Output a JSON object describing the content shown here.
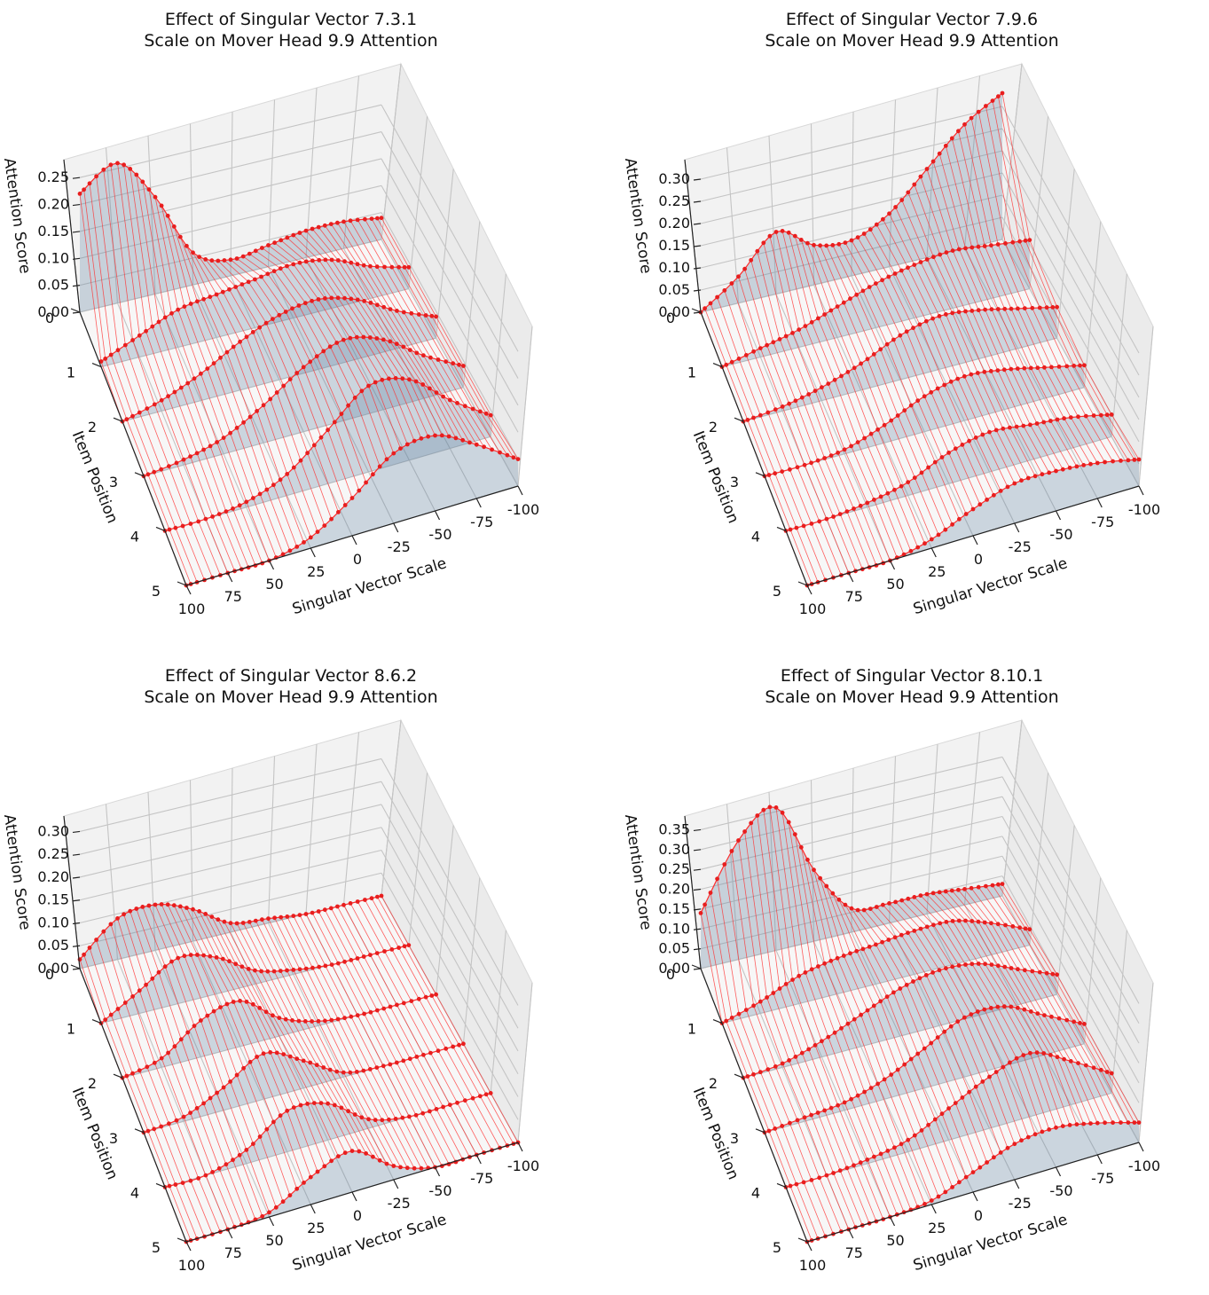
{
  "chart_data": [
    {
      "type": "surface3d",
      "title_line1": "Effect of Singular Vector 7.3.1",
      "title_line2": "Scale on Mover Head 9.9 Attention",
      "xlabel": "Singular Vector Scale",
      "ylabel": "Item Position",
      "zlabel": "Attention Score",
      "x_ticks": [
        "100",
        "75",
        "50",
        "25",
        "0",
        "-25",
        "-50",
        "-75",
        "-100"
      ],
      "y_ticks": [
        "0",
        "1",
        "2",
        "3",
        "4",
        "5"
      ],
      "z_ticks": [
        "0.00",
        "0.05",
        "0.10",
        "0.15",
        "0.20",
        "0.25"
      ],
      "zlim": [
        0,
        0.28
      ],
      "series": [
        {
          "name": "item 0",
          "points": [
            [
              100,
              0.22
            ],
            [
              75,
              0.26
            ],
            [
              50,
              0.18
            ],
            [
              25,
              0.06
            ],
            [
              0,
              0.03
            ],
            [
              -25,
              0.04
            ],
            [
              -50,
              0.05
            ],
            [
              -75,
              0.05
            ],
            [
              -100,
              0.04
            ]
          ]
        },
        {
          "name": "item 1",
          "points": [
            [
              100,
              0.01
            ],
            [
              75,
              0.04
            ],
            [
              50,
              0.07
            ],
            [
              25,
              0.08
            ],
            [
              0,
              0.09
            ],
            [
              -25,
              0.1
            ],
            [
              -50,
              0.09
            ],
            [
              -75,
              0.06
            ],
            [
              -100,
              0.04
            ]
          ]
        },
        {
          "name": "item 2",
          "points": [
            [
              100,
              0.0
            ],
            [
              75,
              0.02
            ],
            [
              50,
              0.05
            ],
            [
              25,
              0.09
            ],
            [
              0,
              0.12
            ],
            [
              -25,
              0.13
            ],
            [
              -50,
              0.11
            ],
            [
              -75,
              0.07
            ],
            [
              -100,
              0.04
            ]
          ]
        },
        {
          "name": "item 3",
          "points": [
            [
              100,
              0.0
            ],
            [
              75,
              0.01
            ],
            [
              50,
              0.03
            ],
            [
              25,
              0.07
            ],
            [
              0,
              0.12
            ],
            [
              -25,
              0.15
            ],
            [
              -50,
              0.13
            ],
            [
              -75,
              0.08
            ],
            [
              -100,
              0.04
            ]
          ]
        },
        {
          "name": "item 4",
          "points": [
            [
              100,
              0.0
            ],
            [
              75,
              0.0
            ],
            [
              50,
              0.01
            ],
            [
              25,
              0.04
            ],
            [
              0,
              0.1
            ],
            [
              -25,
              0.16
            ],
            [
              -50,
              0.15
            ],
            [
              -75,
              0.09
            ],
            [
              -100,
              0.04
            ]
          ]
        },
        {
          "name": "item 5",
          "points": [
            [
              100,
              0.0
            ],
            [
              75,
              0.0
            ],
            [
              50,
              0.0
            ],
            [
              25,
              0.02
            ],
            [
              0,
              0.07
            ],
            [
              -25,
              0.13
            ],
            [
              -50,
              0.14
            ],
            [
              -75,
              0.1
            ],
            [
              -100,
              0.05
            ]
          ]
        }
      ]
    },
    {
      "type": "surface3d",
      "title_line1": "Effect of Singular Vector 7.9.6",
      "title_line2": "Scale on Mover Head 9.9 Attention",
      "xlabel": "Singular Vector Scale",
      "ylabel": "Item Position",
      "zlabel": "Attention Score",
      "x_ticks": [
        "100",
        "75",
        "50",
        "25",
        "0",
        "-25",
        "-50",
        "-75",
        "-100"
      ],
      "y_ticks": [
        "0",
        "1",
        "2",
        "3",
        "4",
        "5"
      ],
      "z_ticks": [
        "0.00",
        "0.05",
        "0.10",
        "0.15",
        "0.20",
        "0.25",
        "0.30"
      ],
      "zlim": [
        0,
        0.34
      ],
      "series": [
        {
          "name": "item 0",
          "points": [
            [
              100,
              0.0
            ],
            [
              75,
              0.06
            ],
            [
              50,
              0.14
            ],
            [
              25,
              0.09
            ],
            [
              0,
              0.08
            ],
            [
              -25,
              0.12
            ],
            [
              -50,
              0.2
            ],
            [
              -75,
              0.28
            ],
            [
              -100,
              0.33
            ]
          ]
        },
        {
          "name": "item 1",
          "points": [
            [
              100,
              0.0
            ],
            [
              75,
              0.02
            ],
            [
              50,
              0.04
            ],
            [
              25,
              0.07
            ],
            [
              0,
              0.1
            ],
            [
              -25,
              0.12
            ],
            [
              -50,
              0.13
            ],
            [
              -75,
              0.12
            ],
            [
              -100,
              0.11
            ]
          ]
        },
        {
          "name": "item 2",
          "points": [
            [
              100,
              0.0
            ],
            [
              75,
              0.01
            ],
            [
              50,
              0.03
            ],
            [
              25,
              0.06
            ],
            [
              0,
              0.1
            ],
            [
              -25,
              0.12
            ],
            [
              -50,
              0.11
            ],
            [
              -75,
              0.09
            ],
            [
              -100,
              0.07
            ]
          ]
        },
        {
          "name": "item 3",
          "points": [
            [
              100,
              0.0
            ],
            [
              75,
              0.0
            ],
            [
              50,
              0.01
            ],
            [
              25,
              0.04
            ],
            [
              0,
              0.08
            ],
            [
              -25,
              0.1
            ],
            [
              -50,
              0.09
            ],
            [
              -75,
              0.07
            ],
            [
              -100,
              0.05
            ]
          ]
        },
        {
          "name": "item 4",
          "points": [
            [
              100,
              0.0
            ],
            [
              75,
              0.0
            ],
            [
              50,
              0.01
            ],
            [
              25,
              0.03
            ],
            [
              0,
              0.07
            ],
            [
              -25,
              0.09
            ],
            [
              -50,
              0.08
            ],
            [
              -75,
              0.07
            ],
            [
              -100,
              0.05
            ]
          ]
        },
        {
          "name": "item 5",
          "points": [
            [
              100,
              0.0
            ],
            [
              75,
              0.0
            ],
            [
              50,
              0.0
            ],
            [
              25,
              0.02
            ],
            [
              0,
              0.06
            ],
            [
              -25,
              0.09
            ],
            [
              -50,
              0.09
            ],
            [
              -75,
              0.08
            ],
            [
              -100,
              0.06
            ]
          ]
        }
      ]
    },
    {
      "type": "surface3d",
      "title_line1": "Effect of Singular Vector 8.6.2",
      "title_line2": "Scale on Mover Head 9.9 Attention",
      "xlabel": "Singular Vector Scale",
      "ylabel": "Item Position",
      "zlabel": "Attention Score",
      "x_ticks": [
        "100",
        "75",
        "50",
        "25",
        "0",
        "-25",
        "-50",
        "-75",
        "-100"
      ],
      "y_ticks": [
        "0",
        "1",
        "2",
        "3",
        "4",
        "5"
      ],
      "z_ticks": [
        "0.00",
        "0.05",
        "0.10",
        "0.15",
        "0.20",
        "0.25",
        "0.30"
      ],
      "zlim": [
        0,
        0.33
      ],
      "series": [
        {
          "name": "item 0",
          "points": [
            [
              100,
              0.02
            ],
            [
              75,
              0.09
            ],
            [
              50,
              0.1
            ],
            [
              25,
              0.07
            ],
            [
              0,
              0.02
            ],
            [
              -25,
              0.01
            ],
            [
              -50,
              0.0
            ],
            [
              -75,
              0.0
            ],
            [
              -100,
              0.0
            ]
          ]
        },
        {
          "name": "item 1",
          "points": [
            [
              100,
              0.0
            ],
            [
              75,
              0.05
            ],
            [
              50,
              0.1
            ],
            [
              25,
              0.08
            ],
            [
              0,
              0.03
            ],
            [
              -25,
              0.01
            ],
            [
              -50,
              0.0
            ],
            [
              -75,
              0.0
            ],
            [
              -100,
              0.0
            ]
          ]
        },
        {
          "name": "item 2",
          "points": [
            [
              100,
              0.0
            ],
            [
              75,
              0.02
            ],
            [
              50,
              0.08
            ],
            [
              25,
              0.1
            ],
            [
              0,
              0.04
            ],
            [
              -25,
              0.01
            ],
            [
              -50,
              0.0
            ],
            [
              -75,
              0.0
            ],
            [
              -100,
              0.0
            ]
          ]
        },
        {
          "name": "item 3",
          "points": [
            [
              100,
              0.0
            ],
            [
              75,
              0.01
            ],
            [
              50,
              0.05
            ],
            [
              25,
              0.1
            ],
            [
              0,
              0.06
            ],
            [
              -25,
              0.01
            ],
            [
              -50,
              0.0
            ],
            [
              -75,
              0.0
            ],
            [
              -100,
              0.0
            ]
          ]
        },
        {
          "name": "item 4",
          "points": [
            [
              100,
              0.0
            ],
            [
              75,
              0.0
            ],
            [
              50,
              0.03
            ],
            [
              25,
              0.09
            ],
            [
              0,
              0.08
            ],
            [
              -25,
              0.02
            ],
            [
              -50,
              0.0
            ],
            [
              -75,
              0.0
            ],
            [
              -100,
              0.0
            ]
          ]
        },
        {
          "name": "item 5",
          "points": [
            [
              100,
              0.0
            ],
            [
              75,
              0.0
            ],
            [
              50,
              0.01
            ],
            [
              25,
              0.06
            ],
            [
              0,
              0.09
            ],
            [
              -25,
              0.03
            ],
            [
              -50,
              0.0
            ],
            [
              -75,
              0.0
            ],
            [
              -100,
              0.0
            ]
          ]
        }
      ]
    },
    {
      "type": "surface3d",
      "title_line1": "Effect of Singular Vector 8.10.1",
      "title_line2": "Scale on Mover Head 9.9 Attention",
      "xlabel": "Singular Vector Scale",
      "ylabel": "Item Position",
      "zlabel": "Attention Score",
      "x_ticks": [
        "100",
        "75",
        "50",
        "25",
        "0",
        "-25",
        "-50",
        "-75",
        "-100"
      ],
      "y_ticks": [
        "0",
        "1",
        "2",
        "3",
        "4",
        "5"
      ],
      "z_ticks": [
        "0.00",
        "0.05",
        "0.10",
        "0.15",
        "0.20",
        "0.25",
        "0.30",
        "0.35"
      ],
      "zlim": [
        0,
        0.38
      ],
      "series": [
        {
          "name": "item 0",
          "points": [
            [
              100,
              0.14
            ],
            [
              75,
              0.3
            ],
            [
              50,
              0.36
            ],
            [
              25,
              0.18
            ],
            [
              0,
              0.06
            ],
            [
              -25,
              0.05
            ],
            [
              -50,
              0.05
            ],
            [
              -75,
              0.04
            ],
            [
              -100,
              0.03
            ]
          ]
        },
        {
          "name": "item 1",
          "points": [
            [
              100,
              0.0
            ],
            [
              75,
              0.03
            ],
            [
              50,
              0.07
            ],
            [
              25,
              0.09
            ],
            [
              0,
              0.1
            ],
            [
              -25,
              0.11
            ],
            [
              -50,
              0.11
            ],
            [
              -75,
              0.08
            ],
            [
              -100,
              0.04
            ]
          ]
        },
        {
          "name": "item 2",
          "points": [
            [
              100,
              0.0
            ],
            [
              75,
              0.01
            ],
            [
              50,
              0.04
            ],
            [
              25,
              0.08
            ],
            [
              0,
              0.12
            ],
            [
              -25,
              0.14
            ],
            [
              -50,
              0.13
            ],
            [
              -75,
              0.09
            ],
            [
              -100,
              0.05
            ]
          ]
        },
        {
          "name": "item 3",
          "points": [
            [
              100,
              0.0
            ],
            [
              75,
              0.01
            ],
            [
              50,
              0.02
            ],
            [
              25,
              0.05
            ],
            [
              0,
              0.1
            ],
            [
              -25,
              0.15
            ],
            [
              -50,
              0.15
            ],
            [
              -75,
              0.1
            ],
            [
              -100,
              0.05
            ]
          ]
        },
        {
          "name": "item 4",
          "points": [
            [
              100,
              0.0
            ],
            [
              75,
              0.0
            ],
            [
              50,
              0.01
            ],
            [
              25,
              0.03
            ],
            [
              0,
              0.08
            ],
            [
              -25,
              0.13
            ],
            [
              -50,
              0.16
            ],
            [
              -75,
              0.11
            ],
            [
              -100,
              0.05
            ]
          ]
        },
        {
          "name": "item 5",
          "points": [
            [
              100,
              0.0
            ],
            [
              75,
              0.0
            ],
            [
              50,
              0.0
            ],
            [
              25,
              0.01
            ],
            [
              0,
              0.05
            ],
            [
              -25,
              0.09
            ],
            [
              -50,
              0.1
            ],
            [
              -75,
              0.08
            ],
            [
              -100,
              0.05
            ]
          ]
        }
      ]
    }
  ]
}
